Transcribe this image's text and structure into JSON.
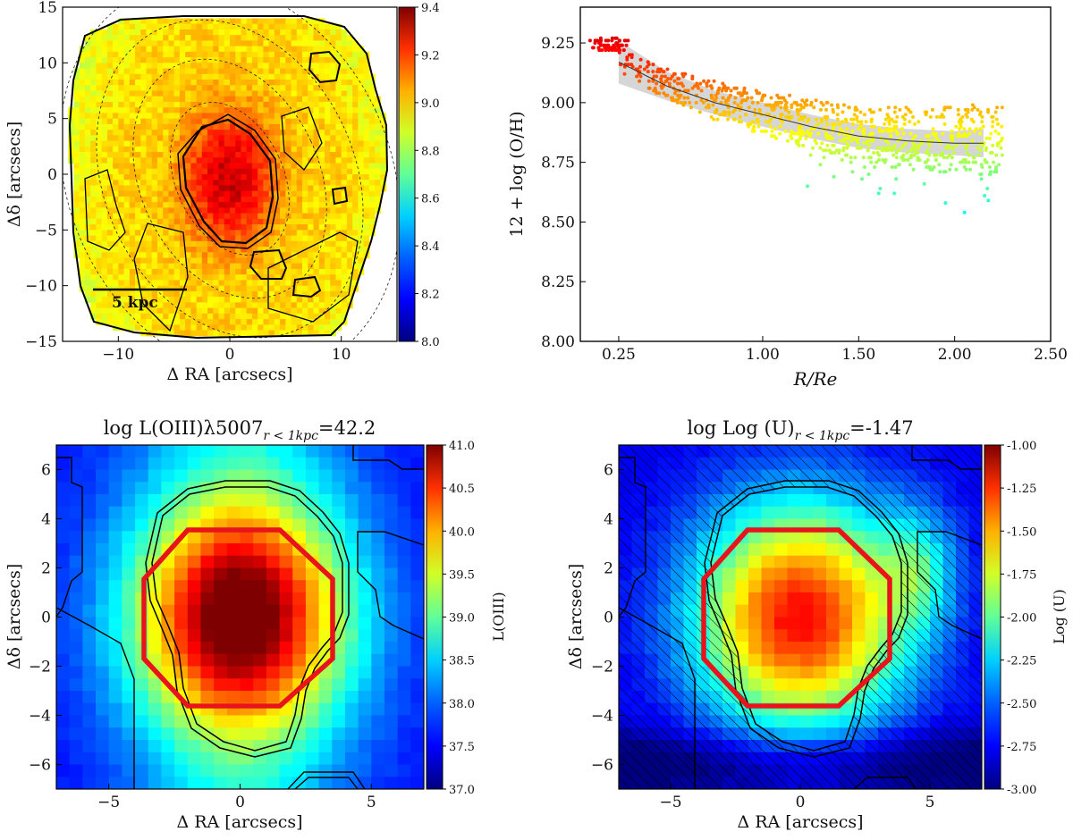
{
  "figure_type": "multi-panel astronomy figure",
  "colormap": [
    "#00007f",
    "#0000ff",
    "#007fff",
    "#00ffff",
    "#7fff7f",
    "#ffff00",
    "#ff7f00",
    "#ff0000",
    "#7f0000"
  ],
  "chart_data": [
    {
      "id": "panel_metallicity_map",
      "type": "heatmap",
      "title": "",
      "xlabel": "Δ RA [arcsecs]",
      "ylabel": "Δδ [arcsecs]",
      "xlim": [
        -15,
        15
      ],
      "ylim": [
        -15,
        15
      ],
      "xticks": [
        "−10",
        "0",
        "10"
      ],
      "xtick_values": [
        -10,
        0,
        10
      ],
      "yticks": [
        "15",
        "10",
        "5",
        "0",
        "−5",
        "−10",
        "−15"
      ],
      "ytick_values": [
        15,
        10,
        5,
        0,
        -5,
        -10,
        -15
      ],
      "colorbar": {
        "label": "",
        "min": 8.0,
        "max": 9.4,
        "ticks": [
          "9.4",
          "9.2",
          "9.0",
          "8.8",
          "8.6",
          "8.4",
          "8.2",
          "8.0"
        ],
        "tick_values": [
          9.4,
          9.2,
          9.0,
          8.8,
          8.6,
          8.4,
          8.2,
          8.0
        ]
      },
      "annotation": "5 kpc",
      "scale_bar_kpc": 5,
      "center_value": 9.3,
      "edge_value": 8.8
    },
    {
      "id": "panel_gradient",
      "type": "scatter",
      "title": "",
      "xlabel": "R/Re",
      "ylabel": "12 + log (O/H)",
      "xlim": [
        0.05,
        2.5
      ],
      "ylim": [
        8.0,
        9.4
      ],
      "xticks": [
        "0.25",
        "1.00",
        "1.50",
        "2.00",
        "2.50"
      ],
      "xtick_values": [
        0.25,
        1.0,
        1.5,
        2.0,
        2.5
      ],
      "yticks": [
        "9.25",
        "9.00",
        "8.75",
        "8.50",
        "8.25",
        "8.00"
      ],
      "ytick_values": [
        9.25,
        9.0,
        8.75,
        8.5,
        8.25,
        8.0
      ],
      "fit_line": {
        "x": [
          0.25,
          0.5,
          0.75,
          1.0,
          1.25,
          1.5,
          1.75,
          2.0,
          2.15
        ],
        "y": [
          9.17,
          9.07,
          9.0,
          8.95,
          8.9,
          8.86,
          8.84,
          8.83,
          8.83
        ]
      },
      "band_halfwidth": [
        0.09,
        0.06,
        0.05,
        0.05,
        0.05,
        0.05,
        0.05,
        0.05,
        0.06
      ],
      "n_points": 900
    },
    {
      "id": "panel_oiii",
      "type": "heatmap",
      "title": "log L(OIII)λ5007",
      "title_sub": "r < 1kpc",
      "title_value": "=42.2",
      "xlabel": "Δ RA [arcsecs]",
      "ylabel": "Δδ [arcsecs]",
      "xlim": [
        -7,
        7
      ],
      "ylim": [
        -7,
        7
      ],
      "xticks": [
        "−5",
        "0",
        "5"
      ],
      "xtick_values": [
        -5,
        0,
        5
      ],
      "yticks": [
        "6",
        "4",
        "2",
        "0",
        "−2",
        "−4",
        "−6"
      ],
      "ytick_values": [
        6,
        4,
        2,
        0,
        -2,
        -4,
        -6
      ],
      "colorbar": {
        "label": "L(OIII)",
        "min": 37.0,
        "max": 41.0,
        "ticks": [
          "41.0",
          "40.5",
          "40.0",
          "39.5",
          "39.0",
          "38.5",
          "38.0",
          "37.5",
          "37.0"
        ],
        "tick_values": [
          41.0,
          40.5,
          40.0,
          39.5,
          39.0,
          38.5,
          38.0,
          37.5,
          37.0
        ]
      },
      "peak_value": 40.9,
      "background_value": 37.8,
      "aperture_radius_arcsec": 3.6
    },
    {
      "id": "panel_logu",
      "type": "heatmap",
      "title": "log Log (U)",
      "title_sub": "r < 1kpc",
      "title_value": "=-1.47",
      "xlabel": "Δ RA [arcsecs]",
      "ylabel": "Δδ [arcsecs]",
      "xlim": [
        -7,
        7
      ],
      "ylim": [
        -7,
        7
      ],
      "xticks": [
        "−5",
        "0",
        "5"
      ],
      "xtick_values": [
        -5,
        0,
        5
      ],
      "yticks": [
        "6",
        "4",
        "2",
        "0",
        "−2",
        "−4",
        "−6"
      ],
      "ytick_values": [
        6,
        4,
        2,
        0,
        -2,
        -4,
        -6
      ],
      "colorbar": {
        "label": "Log (U)",
        "min": -3.0,
        "max": -1.0,
        "ticks": [
          "-1.00",
          "-1.25",
          "-1.50",
          "-1.75",
          "-2.00",
          "-2.25",
          "-2.50",
          "-2.75",
          "-3.00"
        ],
        "tick_values": [
          -1.0,
          -1.25,
          -1.5,
          -1.75,
          -2.0,
          -2.25,
          -2.5,
          -2.75,
          -3.0
        ]
      },
      "peak_value": -1.25,
      "background_value": -2.8,
      "aperture_radius_arcsec": 3.6,
      "hatched_region": "outside contour"
    }
  ]
}
